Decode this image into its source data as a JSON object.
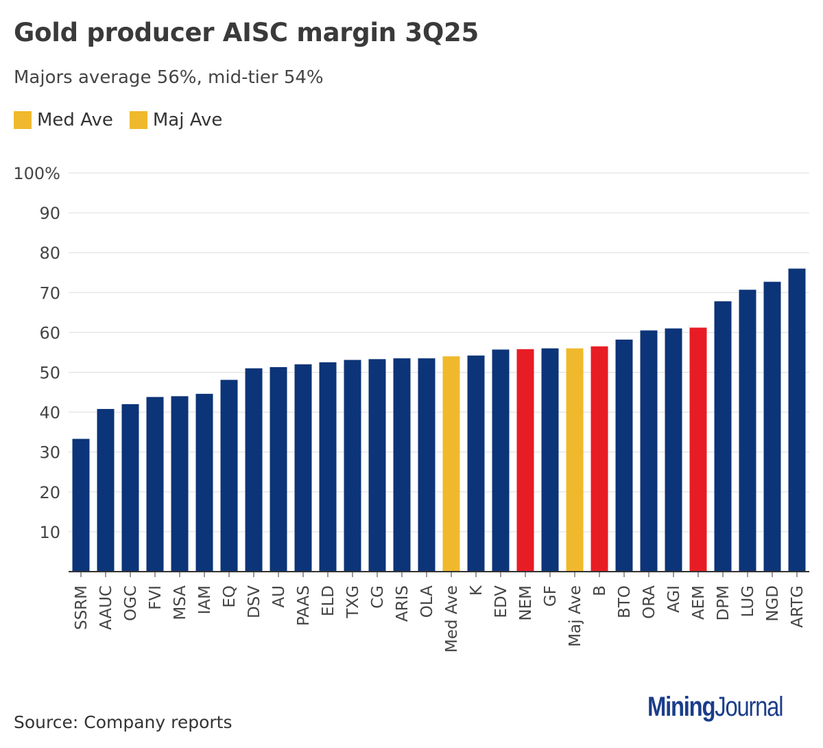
{
  "header": {
    "title": "Gold producer AISC margin 3Q25",
    "subtitle": "Majors average 56%, mid-tier 54%"
  },
  "legend": [
    {
      "label": "Med Ave",
      "color": "#f0b92d"
    },
    {
      "label": "Maj Ave",
      "color": "#f0b92d"
    }
  ],
  "colors": {
    "default": "#0c3478",
    "highlight": "#e81c24",
    "average": "#f0b92d",
    "grid": "#dddddd",
    "axis": "#333333"
  },
  "chart_data": {
    "type": "bar",
    "title": "Gold producer AISC margin 3Q25",
    "xlabel": "",
    "ylabel": "",
    "ylim": [
      0,
      100
    ],
    "yticks": [
      10,
      20,
      30,
      40,
      50,
      60,
      70,
      80,
      90,
      100
    ],
    "ytick_labels": [
      "10",
      "20",
      "30",
      "40",
      "50",
      "60",
      "70",
      "80",
      "90",
      "100%"
    ],
    "categories": [
      "SSRM",
      "AAUC",
      "OGC",
      "FVI",
      "MSA",
      "IAM",
      "EQ",
      "DSV",
      "AU",
      "PAAS",
      "ELD",
      "TXG",
      "CG",
      "ARIS",
      "OLA",
      "Med Ave",
      "K",
      "EDV",
      "NEM",
      "GF",
      "Maj Ave",
      "B",
      "BTO",
      "ORA",
      "AGI",
      "AEM",
      "DPM",
      "LUG",
      "NGD",
      "ARTG"
    ],
    "values": [
      33.3,
      40.8,
      42.0,
      43.8,
      44.0,
      44.6,
      48.1,
      51.0,
      51.3,
      52.0,
      52.5,
      53.1,
      53.3,
      53.5,
      53.5,
      54.0,
      54.2,
      55.7,
      55.8,
      56.0,
      56.0,
      56.5,
      58.2,
      60.5,
      61.0,
      61.2,
      67.8,
      70.7,
      72.7,
      76.0
    ],
    "bar_types": [
      "default",
      "default",
      "default",
      "default",
      "default",
      "default",
      "default",
      "default",
      "default",
      "default",
      "default",
      "default",
      "default",
      "default",
      "default",
      "average",
      "default",
      "default",
      "highlight",
      "default",
      "average",
      "highlight",
      "default",
      "default",
      "default",
      "highlight",
      "default",
      "default",
      "default",
      "default"
    ]
  },
  "footer": {
    "source": "Source: Company reports",
    "logo_part1": "Mining",
    "logo_part2": "Journal"
  }
}
